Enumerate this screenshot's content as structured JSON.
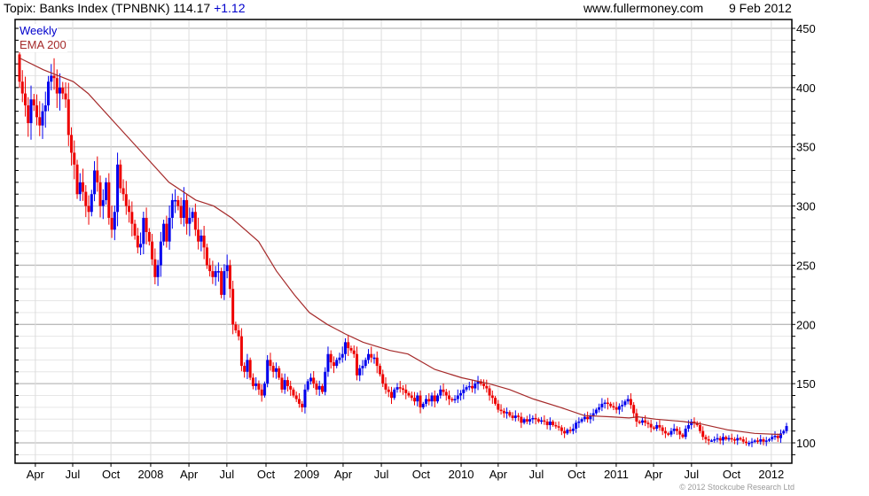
{
  "header": {
    "title": "Topix: Banks Index (TPNBNK)",
    "last": "114.17",
    "change": "+1.12",
    "site": "www.fullermoney.com",
    "date": "9 Feb 2012"
  },
  "legend": {
    "period": "Weekly",
    "ema": "EMA 200"
  },
  "copyright": "© 2012 Stockcube Research Ltd",
  "colors": {
    "up": "#0000ee",
    "down": "#ee0000",
    "ema": "#a52a2a",
    "title_change": "#0000cc"
  },
  "chart_data": {
    "type": "candlestick",
    "title": "Topix: Banks Index (TPNBNK)",
    "period": "weekly",
    "ylim": [
      82.8,
      457.5
    ],
    "yticks": [
      100,
      150,
      200,
      250,
      300,
      350,
      400,
      450
    ],
    "x_weeks_total": 256.7,
    "xticks": [
      {
        "label": "Apr",
        "week": 5.3
      },
      {
        "label": "Jul",
        "week": 17.8
      },
      {
        "label": "Oct",
        "week": 30.6
      },
      {
        "label": "2008",
        "week": 43.9
      },
      {
        "label": "Apr",
        "week": 56.7
      },
      {
        "label": "Jul",
        "week": 69.4
      },
      {
        "label": "Oct",
        "week": 82.5
      },
      {
        "label": "2009",
        "week": 96.1
      },
      {
        "label": "Apr",
        "week": 108.3
      },
      {
        "label": "Jul",
        "week": 121.1
      },
      {
        "label": "Oct",
        "week": 134.4
      },
      {
        "label": "2010",
        "week": 147.8
      },
      {
        "label": "Apr",
        "week": 160.2
      },
      {
        "label": "Jul",
        "week": 173.0
      },
      {
        "label": "Oct",
        "week": 186.4
      },
      {
        "label": "2011",
        "week": 199.7
      },
      {
        "label": "Apr",
        "week": 212.2
      },
      {
        "label": "Jul",
        "week": 224.9
      },
      {
        "label": "Oct",
        "week": 238.3
      },
      {
        "label": "2012",
        "week": 251.6
      }
    ],
    "first_open": 428,
    "closes": [
      405,
      395,
      385,
      370,
      390,
      385,
      375,
      368,
      380,
      385,
      405,
      410,
      408,
      395,
      400,
      395,
      390,
      360,
      345,
      335,
      310,
      320,
      312,
      300,
      295,
      310,
      330,
      320,
      300,
      305,
      320,
      290,
      280,
      295,
      335,
      315,
      310,
      300,
      295,
      285,
      275,
      265,
      268,
      290,
      278,
      270,
      255,
      240,
      250,
      270,
      285,
      270,
      290,
      305,
      305,
      300,
      290,
      305,
      285,
      290,
      295,
      280,
      270,
      275,
      265,
      250,
      245,
      240,
      245,
      245,
      225,
      245,
      250,
      230,
      200,
      195,
      190,
      165,
      160,
      170,
      155,
      148,
      150,
      145,
      140,
      150,
      170,
      165,
      160,
      163,
      155,
      145,
      153,
      148,
      145,
      140,
      137,
      133,
      130,
      145,
      152,
      155,
      150,
      145,
      148,
      143,
      160,
      175,
      168,
      165,
      170,
      172,
      175,
      185,
      180,
      178,
      175,
      157,
      163,
      165,
      170,
      175,
      172,
      172,
      165,
      158,
      150,
      145,
      143,
      138,
      145,
      147,
      146,
      145,
      142,
      140,
      138,
      135,
      140,
      130,
      133,
      137,
      135,
      140,
      135,
      140,
      145,
      143,
      140,
      137,
      136,
      137,
      140,
      142,
      145,
      147,
      148,
      146,
      150,
      152,
      150,
      148,
      146,
      140,
      138,
      133,
      128,
      127,
      125,
      126,
      123,
      121,
      123,
      122,
      117,
      120,
      118,
      120,
      121,
      120,
      118,
      119,
      118,
      115,
      118,
      115,
      114,
      113,
      110,
      108,
      111,
      110,
      112,
      117,
      118,
      120,
      122,
      120,
      123,
      125,
      128,
      130,
      133,
      134,
      133,
      131,
      130,
      128,
      131,
      132,
      135,
      137,
      132,
      125,
      118,
      117,
      119,
      117,
      116,
      113,
      112,
      115,
      113,
      110,
      108,
      107,
      110,
      112,
      110,
      107,
      105,
      112,
      115,
      118,
      117,
      115,
      110,
      105,
      103,
      102,
      102,
      103,
      104,
      102,
      105,
      103,
      104,
      103,
      102,
      104,
      103,
      101,
      100,
      100,
      101,
      102,
      101,
      103,
      101,
      102,
      103,
      105,
      106,
      104,
      108,
      110,
      114.17
    ],
    "ema200": [
      [
        0,
        425
      ],
      [
        8,
        415
      ],
      [
        18,
        405
      ],
      [
        23,
        395
      ],
      [
        32,
        370
      ],
      [
        41,
        345
      ],
      [
        50,
        320
      ],
      [
        59,
        305
      ],
      [
        65,
        300
      ],
      [
        71,
        290
      ],
      [
        80,
        270
      ],
      [
        86,
        245
      ],
      [
        92,
        225
      ],
      [
        97,
        210
      ],
      [
        103,
        200
      ],
      [
        109,
        192
      ],
      [
        115,
        185
      ],
      [
        124,
        178
      ],
      [
        130,
        175
      ],
      [
        139,
        162
      ],
      [
        148,
        155
      ],
      [
        157,
        150
      ],
      [
        164,
        145
      ],
      [
        172,
        137
      ],
      [
        181,
        130
      ],
      [
        189,
        123
      ],
      [
        198,
        122
      ],
      [
        204,
        121
      ],
      [
        207,
        122
      ],
      [
        213,
        120
      ],
      [
        222,
        118
      ],
      [
        228,
        116
      ],
      [
        237,
        111
      ],
      [
        246,
        108
      ],
      [
        255,
        107
      ]
    ]
  }
}
